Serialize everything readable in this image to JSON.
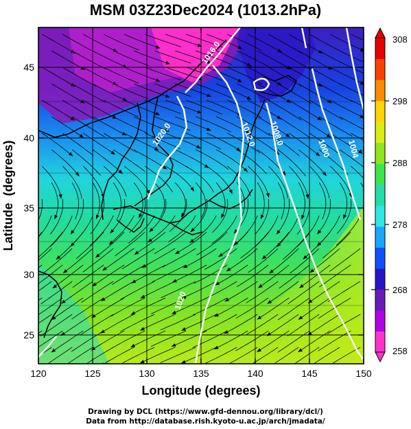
{
  "title": "MSM 03Z23Dec2024 (1013.2hPa)",
  "x_axis": {
    "label": "Longitude (degrees)",
    "ticks": [
      "120",
      "125",
      "130",
      "135",
      "140",
      "145",
      "150"
    ]
  },
  "y_axis": {
    "label": "Latitude  (degrees)",
    "ticks": [
      "25",
      "30",
      "35",
      "40",
      "45"
    ]
  },
  "colorbar": {
    "ticks": [
      "258",
      "268",
      "278",
      "288",
      "298",
      "308"
    ],
    "min": 258,
    "max": 308,
    "colors": [
      "#ff33cc",
      "#b300e6",
      "#6a1ab8",
      "#2a14c8",
      "#1050ff",
      "#19a6ff",
      "#2fe6e6",
      "#22ddaa",
      "#3ce64a",
      "#8ee61e",
      "#d9ee10",
      "#ffd400",
      "#ff8a00",
      "#ff4000",
      "#e60000"
    ]
  },
  "contour_labels": [
    "1016.0",
    "1020.0",
    "1012.0",
    "1008.0",
    "1000",
    "1004",
    "1020"
  ],
  "credits": {
    "line1": "Drawing by DCL (https://www.gfd-dennou.org/library/dcl/)",
    "line2": "Data from http://database.rish.kyoto-u.ac.jp/arch/jmadata/"
  }
}
